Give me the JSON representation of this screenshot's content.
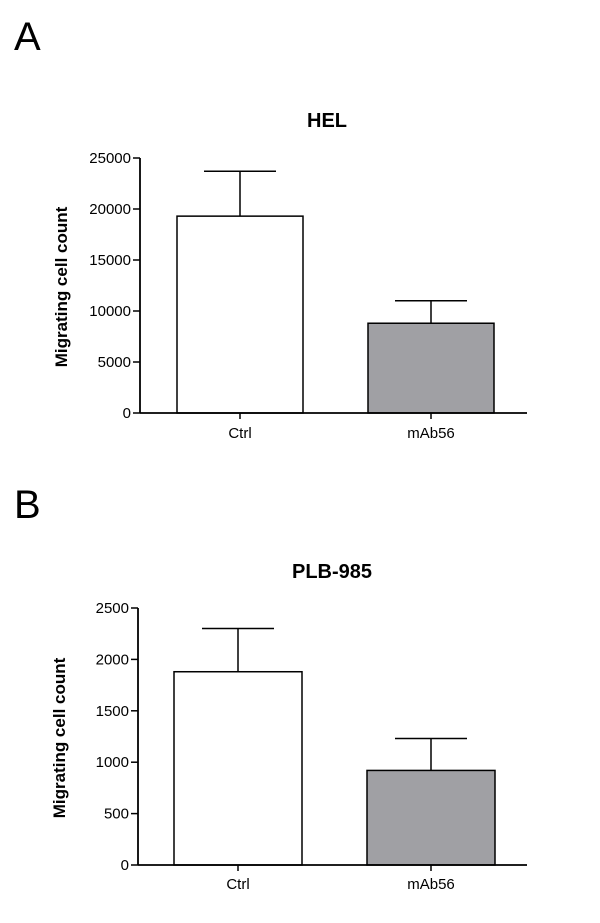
{
  "panels": [
    {
      "letter": "A",
      "chart_data": {
        "type": "bar",
        "title": "HEL",
        "xlabel": "",
        "ylabel": "Migrating cell count",
        "categories": [
          "Ctrl",
          "mAb56"
        ],
        "values": [
          19300,
          8800
        ],
        "errors": [
          4400,
          2200
        ],
        "bar_colors": [
          "#ffffff",
          "#a0a0a4"
        ],
        "ylim": [
          0,
          25000
        ],
        "yticks": [
          0,
          5000,
          10000,
          15000,
          20000,
          25000
        ],
        "ytick_labels": [
          "0",
          "5000",
          "10000",
          "15000",
          "20000",
          "25000"
        ],
        "grid": false,
        "legend": "none"
      }
    },
    {
      "letter": "B",
      "chart_data": {
        "type": "bar",
        "title": "PLB-985",
        "xlabel": "",
        "ylabel": "Migrating cell count",
        "categories": [
          "Ctrl",
          "mAb56"
        ],
        "values": [
          1880,
          920
        ],
        "errors": [
          420,
          310
        ],
        "bar_colors": [
          "#ffffff",
          "#a0a0a4"
        ],
        "ylim": [
          0,
          2500
        ],
        "yticks": [
          0,
          500,
          1000,
          1500,
          2000,
          2500
        ],
        "ytick_labels": [
          "0",
          "500",
          "1000",
          "1500",
          "2000",
          "2500"
        ],
        "grid": false,
        "legend": "none"
      }
    }
  ]
}
